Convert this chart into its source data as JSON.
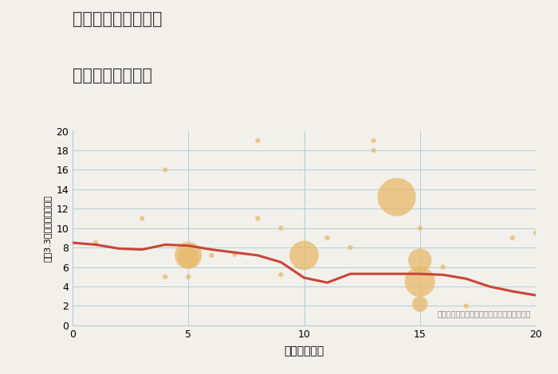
{
  "title_line1": "三重県伊賀市勝地の",
  "title_line2": "駅距離別土地価格",
  "xlabel": "駅距離（分）",
  "ylabel": "坪（3.3㎡）単価（万円）",
  "bg_color": "#f2f0eb",
  "plot_bg_color": "#f2f0eb",
  "bubble_color": "#e8b96a",
  "bubble_alpha": 0.75,
  "line_color": "#c94535",
  "line_width": 2.2,
  "grid_color": "#b0ccd8",
  "annotation": "円の大きさは、取引のあった物件面積を示す",
  "xlim": [
    0,
    20
  ],
  "ylim": [
    0,
    20
  ],
  "xticks": [
    0,
    5,
    10,
    15,
    20
  ],
  "yticks": [
    0,
    2,
    4,
    6,
    8,
    10,
    12,
    14,
    16,
    18,
    20
  ],
  "scatter_x": [
    1,
    3,
    4,
    4,
    5,
    5,
    5,
    6,
    7,
    8,
    8,
    9,
    9,
    10,
    11,
    12,
    13,
    13,
    14,
    15,
    15,
    15,
    15,
    16,
    17,
    19,
    20
  ],
  "scatter_y": [
    8.5,
    11,
    16,
    5,
    7.2,
    7.0,
    5.0,
    7.2,
    7.3,
    19,
    11,
    10,
    5.2,
    7.2,
    9.0,
    8.0,
    19,
    18,
    13.2,
    10,
    6.7,
    4.5,
    2.2,
    6.0,
    2.0,
    9.0,
    9.5
  ],
  "scatter_size": [
    20,
    20,
    20,
    20,
    600,
    350,
    20,
    20,
    20,
    20,
    20,
    20,
    20,
    700,
    20,
    20,
    20,
    20,
    1200,
    20,
    450,
    750,
    200,
    20,
    20,
    20,
    20
  ],
  "trend_x": [
    0,
    1,
    2,
    3,
    4,
    5,
    6,
    7,
    8,
    9,
    10,
    11,
    12,
    13,
    14,
    15,
    16,
    17,
    18,
    19,
    20
  ],
  "trend_y": [
    8.5,
    8.3,
    7.9,
    7.8,
    8.3,
    8.2,
    7.8,
    7.5,
    7.2,
    6.5,
    4.9,
    4.4,
    5.3,
    5.3,
    5.3,
    5.3,
    5.2,
    4.8,
    4.0,
    3.5,
    3.1
  ]
}
